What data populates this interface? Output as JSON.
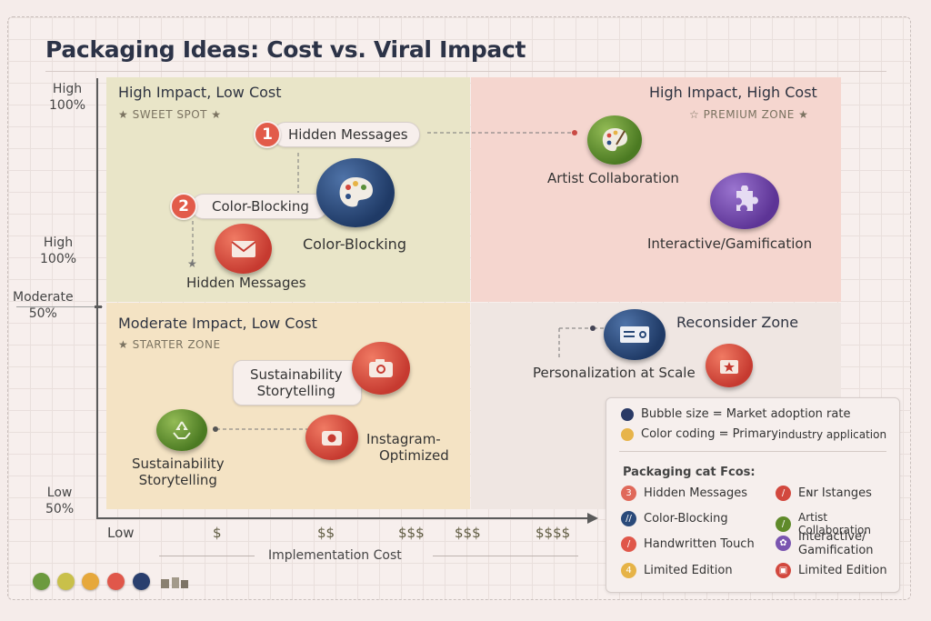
{
  "title": "Packaging Ideas: Cost vs. Viral Impact",
  "quadrants": {
    "tl": {
      "title": "High Impact, Low Cost",
      "sub": "★ SWEET SPOT ★"
    },
    "tr": {
      "title": "High Impact, High Cost",
      "sub": "☆ PREMIUM ZONE ★"
    },
    "bl": {
      "title": "Moderate Impact, Low Cost",
      "sub": "★ STARTER ZONE"
    },
    "br": {
      "title": "Reconsider Zone"
    }
  },
  "y_axis": {
    "high1": "High",
    "high1_pct": "100%",
    "high2": "High",
    "high2_pct": "100%",
    "mod": "Moderate",
    "mod_pct": "50%",
    "low": "Low",
    "low_pct": "50%"
  },
  "x_axis": {
    "title": "Implementation Cost",
    "ticks": [
      "Low",
      "$",
      "$$",
      "$$$",
      "$$$",
      "$$$$"
    ]
  },
  "chart_data": {
    "type": "scatter",
    "title": "Packaging Ideas: Cost vs. Viral Impact",
    "xlabel": "Implementation Cost",
    "ylabel": "",
    "points": [
      {
        "label": "Hidden Messages",
        "rank": "1",
        "quadrant": "High Impact, Low Cost",
        "color": "#d2483e"
      },
      {
        "label": "Color-Blocking",
        "rank": "2",
        "quadrant": "High Impact, Low Cost",
        "color": "#294a78"
      },
      {
        "label": "Artist Collaboration",
        "quadrant": "High Impact, High Cost",
        "color": "#5f8a2a"
      },
      {
        "label": "Interactive/Gamification",
        "quadrant": "High Impact, High Cost",
        "color": "#6a3fa0"
      },
      {
        "label": "Sustainability Storytelling",
        "quadrant": "Moderate Impact, Low Cost",
        "color": "#d2483e"
      },
      {
        "label": "Instagram-Optimized",
        "quadrant": "Moderate Impact, Low Cost",
        "color": "#d2483e"
      },
      {
        "label": "Sustainability Storytelling",
        "quadrant": "Moderate Impact, Low Cost",
        "color": "#6a9a34"
      },
      {
        "label": "Personalization at Scale",
        "quadrant": "Reconsider Zone",
        "color": "#294a78"
      }
    ]
  },
  "labels": {
    "pill_hidden": "Hidden Messages",
    "badge1": "1",
    "pill_color": "Color-Blocking",
    "badge2": "2",
    "color_bubble": "Color-Blocking",
    "hidden_bubble": "Hidden Messages",
    "artist": "Artist Collaboration",
    "interactive": "Interactive/Gamification",
    "sust_pill_1": "Sustainability",
    "sust_pill_2": "Storytelling",
    "insta_1": "Instagram-",
    "insta_2": "Optimized",
    "sust2_1": "Sustainability",
    "sust2_2": "Storytelling",
    "personal": "Personalization at Scale"
  },
  "legend": {
    "size_note": "Bubble size = Market adoption rate",
    "color_note_a": "Color coding = Primary ",
    "color_note_b": "industry application",
    "heading": "Packaging cat Fcos:",
    "items": [
      "Hidden Messages",
      "Eɴr Istanges",
      "Color-Blocking",
      "Artist Collaboration",
      "Handwritten Touch",
      "Interactive/",
      "Limited Edition",
      "Limited Edition"
    ],
    "item6_line2": "Gamification",
    "size_color": "#2a3a66",
    "color_color": "#e7b44a"
  },
  "swatches": [
    "#6c9a3e",
    "#c9c04a",
    "#e6a83c",
    "#e0574a",
    "#2a3f6e"
  ]
}
